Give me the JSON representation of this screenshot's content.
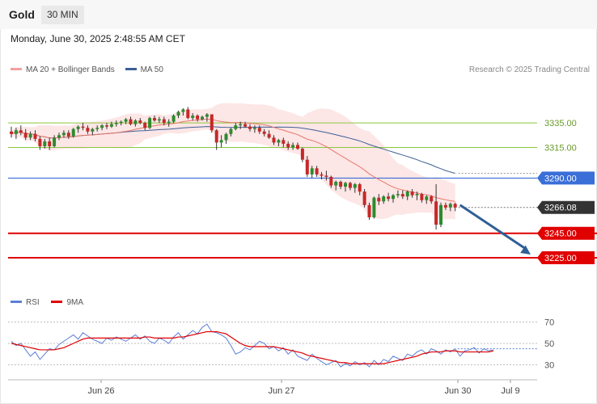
{
  "header": {
    "symbol": "Gold",
    "interval": "30 MIN"
  },
  "datetime": "Monday, June 30, 2025 2:48:55 AM CET",
  "legend": {
    "ma20_label": "MA 20 + Bollinger Bands",
    "ma50_label": "MA 50",
    "copyright": "Research © 2025 Trading Central"
  },
  "colors": {
    "up": "#2e8b2e",
    "down": "#c62828",
    "ma20": "#e8776b",
    "ma50": "#3d5f96",
    "band": "#fde3e3",
    "support": "#e00000",
    "pivot": "#3a6fd8",
    "resistance": "#8cc63f",
    "last": "#333333",
    "arrow": "#2f5f96",
    "rsi": "#5b7fd6",
    "rsi_ma": "#e00000"
  },
  "chart_data": [
    {
      "type": "candlestick",
      "title": "Gold 30 MIN",
      "ylim": [
        3198,
        3372
      ],
      "x_ticks": [
        "Jun 26",
        "Jun 27",
        "Jun 30",
        "Jul 9"
      ],
      "candles_ohlc": [
        [
          3328,
          3332,
          3323,
          3326
        ],
        [
          3326,
          3331,
          3322,
          3329
        ],
        [
          3329,
          3333,
          3325,
          3327
        ],
        [
          3327,
          3330,
          3321,
          3323
        ],
        [
          3323,
          3328,
          3321,
          3326
        ],
        [
          3326,
          3329,
          3320,
          3322
        ],
        [
          3322,
          3324,
          3313,
          3316
        ],
        [
          3316,
          3322,
          3314,
          3320
        ],
        [
          3320,
          3323,
          3313,
          3316
        ],
        [
          3316,
          3325,
          3315,
          3323
        ],
        [
          3323,
          3327,
          3321,
          3325
        ],
        [
          3325,
          3329,
          3323,
          3327
        ],
        [
          3327,
          3329,
          3322,
          3324
        ],
        [
          3324,
          3331,
          3323,
          3330
        ],
        [
          3330,
          3333,
          3327,
          3332
        ],
        [
          3332,
          3335,
          3329,
          3331
        ],
        [
          3331,
          3333,
          3326,
          3328
        ],
        [
          3328,
          3331,
          3325,
          3330
        ],
        [
          3330,
          3333,
          3328,
          3331
        ],
        [
          3331,
          3334,
          3329,
          3333
        ],
        [
          3333,
          3335,
          3330,
          3332
        ],
        [
          3332,
          3336,
          3331,
          3334
        ],
        [
          3334,
          3337,
          3332,
          3335
        ],
        [
          3335,
          3337,
          3333,
          3336
        ],
        [
          3336,
          3339,
          3334,
          3338
        ],
        [
          3338,
          3340,
          3333,
          3334
        ],
        [
          3334,
          3338,
          3332,
          3337
        ],
        [
          3337,
          3339,
          3334,
          3335
        ],
        [
          3335,
          3336,
          3329,
          3331
        ],
        [
          3331,
          3340,
          3330,
          3339
        ],
        [
          3339,
          3341,
          3336,
          3337
        ],
        [
          3337,
          3340,
          3335,
          3338
        ],
        [
          3338,
          3340,
          3333,
          3335
        ],
        [
          3335,
          3338,
          3332,
          3336
        ],
        [
          3336,
          3342,
          3335,
          3341
        ],
        [
          3341,
          3345,
          3339,
          3344
        ],
        [
          3344,
          3347,
          3341,
          3346
        ],
        [
          3346,
          3348,
          3338,
          3339
        ],
        [
          3339,
          3343,
          3337,
          3341
        ],
        [
          3341,
          3342,
          3336,
          3338
        ],
        [
          3338,
          3341,
          3337,
          3340
        ],
        [
          3340,
          3343,
          3336,
          3342
        ],
        [
          3342,
          3342,
          3327,
          3329
        ],
        [
          3329,
          3330,
          3313,
          3319
        ],
        [
          3319,
          3325,
          3315,
          3321
        ],
        [
          3321,
          3327,
          3318,
          3326
        ],
        [
          3326,
          3331,
          3324,
          3330
        ],
        [
          3330,
          3335,
          3329,
          3333
        ],
        [
          3333,
          3336,
          3330,
          3334
        ],
        [
          3334,
          3336,
          3331,
          3332
        ],
        [
          3332,
          3334,
          3328,
          3330
        ],
        [
          3330,
          3333,
          3327,
          3331
        ],
        [
          3331,
          3333,
          3326,
          3328
        ],
        [
          3328,
          3330,
          3324,
          3326
        ],
        [
          3326,
          3329,
          3322,
          3323
        ],
        [
          3323,
          3325,
          3317,
          3319
        ],
        [
          3319,
          3322,
          3316,
          3321
        ],
        [
          3321,
          3323,
          3315,
          3318
        ],
        [
          3318,
          3320,
          3313,
          3315
        ],
        [
          3315,
          3319,
          3313,
          3317
        ],
        [
          3317,
          3319,
          3313,
          3314
        ],
        [
          3314,
          3315,
          3303,
          3305
        ],
        [
          3305,
          3308,
          3291,
          3293
        ],
        [
          3293,
          3300,
          3290,
          3298
        ],
        [
          3298,
          3300,
          3291,
          3293
        ],
        [
          3293,
          3295,
          3289,
          3292
        ],
        [
          3292,
          3296,
          3288,
          3291
        ],
        [
          3291,
          3292,
          3282,
          3284
        ],
        [
          3284,
          3288,
          3280,
          3287
        ],
        [
          3287,
          3288,
          3281,
          3283
        ],
        [
          3283,
          3287,
          3279,
          3286
        ],
        [
          3286,
          3287,
          3280,
          3282
        ],
        [
          3282,
          3286,
          3278,
          3285
        ],
        [
          3285,
          3286,
          3276,
          3279
        ],
        [
          3279,
          3281,
          3266,
          3268
        ],
        [
          3268,
          3270,
          3256,
          3258
        ],
        [
          3258,
          3275,
          3257,
          3274
        ],
        [
          3274,
          3277,
          3268,
          3271
        ],
        [
          3271,
          3276,
          3269,
          3275
        ],
        [
          3275,
          3278,
          3271,
          3273
        ],
        [
          3273,
          3277,
          3270,
          3276
        ],
        [
          3276,
          3280,
          3274,
          3277
        ],
        [
          3277,
          3280,
          3273,
          3275
        ],
        [
          3275,
          3280,
          3272,
          3279
        ],
        [
          3279,
          3281,
          3274,
          3276
        ],
        [
          3276,
          3279,
          3272,
          3277
        ],
        [
          3277,
          3278,
          3270,
          3272
        ],
        [
          3272,
          3276,
          3269,
          3275
        ],
        [
          3275,
          3276,
          3269,
          3271
        ],
        [
          3271,
          3285,
          3248,
          3252
        ],
        [
          3252,
          3270,
          3250,
          3268
        ],
        [
          3268,
          3270,
          3264,
          3266
        ],
        [
          3266,
          3270,
          3263,
          3269
        ],
        [
          3269,
          3270,
          3263,
          3266
        ]
      ],
      "levels": [
        {
          "value": 3335.0,
          "label": "3335.00",
          "kind": "resistance"
        },
        {
          "value": 3315.0,
          "label": "3315.00",
          "kind": "resistance"
        },
        {
          "value": 3290.0,
          "label": "3290.00",
          "kind": "pivot"
        },
        {
          "value": 3266.08,
          "label": "3266.08",
          "kind": "last"
        },
        {
          "value": 3245.0,
          "label": "3245.00",
          "kind": "support"
        },
        {
          "value": 3225.0,
          "label": "3225.00",
          "kind": "support"
        }
      ],
      "arrow": {
        "from": 3268,
        "to": 3225
      }
    },
    {
      "type": "line",
      "ylim": [
        22,
        78
      ],
      "y_ticks": [
        70,
        50,
        30
      ],
      "series": [
        {
          "name": "RSI",
          "values": [
            52,
            48,
            50,
            44,
            38,
            42,
            35,
            40,
            45,
            44,
            49,
            52,
            55,
            58,
            54,
            60,
            57,
            54,
            52,
            50,
            55,
            53,
            56,
            54,
            52,
            55,
            58,
            54,
            57,
            52,
            50,
            55,
            53,
            50,
            56,
            60,
            54,
            58,
            62,
            59,
            65,
            68,
            61,
            60,
            58,
            55,
            48,
            40,
            42,
            46,
            44,
            48,
            52,
            50,
            45,
            47,
            43,
            46,
            40,
            44,
            38,
            36,
            34,
            40,
            36,
            33,
            30,
            32,
            34,
            28,
            31,
            29,
            33,
            30,
            32,
            28,
            34,
            30,
            35,
            33,
            38,
            36,
            34,
            40,
            38,
            42,
            44,
            40,
            45,
            43,
            40,
            44,
            42,
            45,
            38,
            43,
            44,
            46,
            41,
            45,
            43,
            44
          ]
        },
        {
          "name": "9MA",
          "values": [
            50,
            49,
            48,
            47,
            46,
            45,
            44,
            44,
            44,
            44,
            45,
            46,
            48,
            50,
            52,
            54,
            55,
            55,
            55,
            55,
            55,
            55,
            55,
            55,
            55,
            55,
            55,
            55,
            56,
            56,
            55,
            55,
            55,
            55,
            55,
            56,
            56,
            57,
            58,
            59,
            60,
            61,
            61,
            61,
            60,
            59,
            56,
            53,
            50,
            48,
            47,
            47,
            47,
            47,
            47,
            47,
            46,
            45,
            44,
            43,
            42,
            41,
            39,
            38,
            37,
            36,
            35,
            34,
            33,
            32,
            32,
            31,
            31,
            31,
            31,
            31,
            31,
            31,
            31,
            32,
            33,
            34,
            35,
            36,
            37,
            38,
            40,
            41,
            42,
            42,
            42,
            43,
            43,
            43,
            42,
            42,
            42,
            42,
            42,
            42,
            42,
            43
          ]
        }
      ]
    }
  ]
}
